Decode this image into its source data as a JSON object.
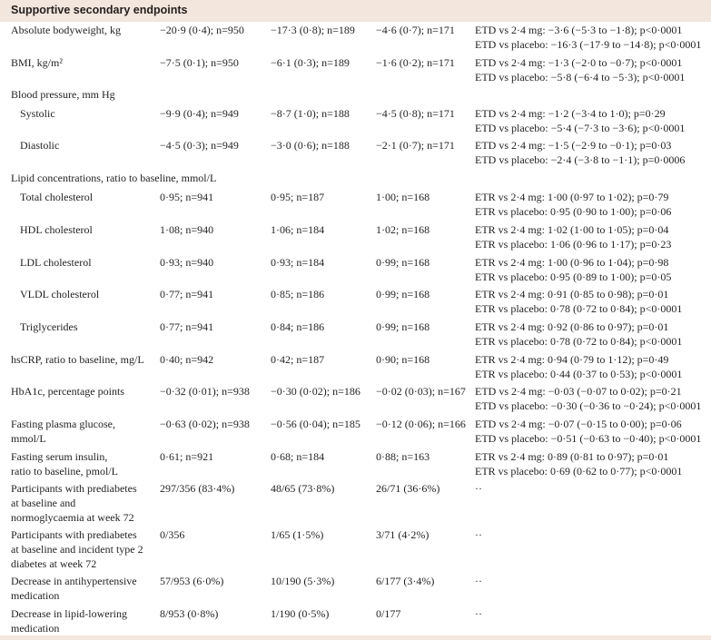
{
  "table": {
    "title": "Supportive secondary endpoints",
    "rows": [
      {
        "label": [
          "Absolute bodyweight, kg"
        ],
        "cells": [
          "−20·9 (0·4); n=950",
          "−17·3 (0·8); n=189",
          "−4·6 (0·7); n=171"
        ],
        "comparison": [
          "ETD vs 2·4 mg: −3·6 (−5·3 to −1·8); p<0·0001",
          "ETD vs placebo: −16·3 (−17·9 to −14·8); p<0·0001"
        ]
      },
      {
        "label": [
          "BMI, kg/m²"
        ],
        "cells": [
          "−7·5 (0·1); n=950",
          "−6·1 (0·3); n=189",
          "−1·6 (0·2); n=171"
        ],
        "comparison": [
          "ETD vs 2·4 mg: −1·3 (−2·0 to −0·7); p<0·0001",
          "ETD vs placebo: −5·8 (−6·4 to −5·3); p<0·0001"
        ]
      },
      {
        "label": [
          "Blood pressure, mm Hg"
        ],
        "cells": [],
        "comparison": []
      },
      {
        "label": [
          "Systolic"
        ],
        "cells": [
          "−9·9 (0·4); n=949",
          "−8·7 (1·0); n=188",
          "−4·5 (0·8); n=171"
        ],
        "comparison": [
          "ETD vs 2·4 mg: −1·2 (−3·4 to 1·0); p=0·29",
          "ETD vs placebo: −5·4 (−7·3 to −3·6); p<0·0001"
        ]
      },
      {
        "label": [
          "Diastolic"
        ],
        "cells": [
          "−4·5 (0·3); n=949",
          "−3·0 (0·6); n=188",
          "−2·1 (0·7); n=171"
        ],
        "comparison": [
          "ETD vs 2·4 mg: −1·5 (−2·9 to −0·1); p=0·03",
          "ETD vs placebo: −2·4 (−3·8 to −1·1); p=0·0006"
        ]
      },
      {
        "label": [
          "Lipid concentrations, ratio to baseline, mmol/L"
        ],
        "cells": [],
        "comparison": []
      },
      {
        "label": [
          "Total cholesterol"
        ],
        "cells": [
          "0·95; n=941",
          "0·95; n=187",
          "1·00; n=168"
        ],
        "comparison": [
          "ETR vs 2·4 mg: 1·00 (0·97 to 1·02); p=0·79",
          "ETR vs placebo: 0·95 (0·90 to 1·00); p=0·06"
        ]
      },
      {
        "label": [
          "HDL cholesterol"
        ],
        "cells": [
          "1·08; n=940",
          "1·06; n=184",
          "1·02; n=168"
        ],
        "comparison": [
          "ETR vs 2·4 mg: 1·02 (1·00 to 1·05); p=0·04",
          "ETR vs placebo: 1·06 (0·96 to 1·17); p=0·23"
        ]
      },
      {
        "label": [
          "LDL cholesterol"
        ],
        "cells": [
          "0·93; n=940",
          "0·93; n=184",
          "0·99; n=168"
        ],
        "comparison": [
          "ETR vs 2·4 mg: 1·00 (0·96 to 1·04); p=0·98",
          "ETR vs placebo: 0·95 (0·89 to 1·00); p=0·05"
        ]
      },
      {
        "label": [
          "VLDL cholesterol"
        ],
        "cells": [
          "0·77; n=941",
          "0·85; n=186",
          "0·99; n=168"
        ],
        "comparison": [
          "ETR vs 2·4 mg: 0·91 (0·85 to 0·98); p=0·01",
          "ETR vs placebo: 0·78 (0·72 to 0·84); p<0·0001"
        ]
      },
      {
        "label": [
          "Triglycerides"
        ],
        "cells": [
          "0·77; n=941",
          "0·84; n=186",
          "0·99; n=168"
        ],
        "comparison": [
          "ETR vs 2·4 mg: 0·92 (0·86 to 0·97); p=0·01",
          "ETR vs placebo: 0·78 (0·72 to 0·84); p<0·0001"
        ]
      },
      {
        "label": [
          "hsCRP, ratio to baseline, mg/L"
        ],
        "cells": [
          "0·40; n=942",
          "0·42; n=187",
          "0·90; n=168"
        ],
        "comparison": [
          "ETR vs 2·4 mg: 0·94 (0·79 to 1·12); p=0·49",
          "ETR vs placebo: 0·44 (0·37 to 0·53); p<0·0001"
        ]
      },
      {
        "label": [
          "HbA1c, percentage points"
        ],
        "cells": [
          "−0·32 (0·01); n=938",
          "−0·30 (0·02); n=186",
          "−0·02 (0·03); n=167"
        ],
        "comparison": [
          "ETD vs 2·4 mg: −0·03 (−0·07 to 0·02); p=0·21",
          "ETD vs placebo: −0·30 (−0·36 to −0·24); p<0·0001"
        ]
      },
      {
        "label": [
          "Fasting plasma glucose,",
          "mmol/L"
        ],
        "cells": [
          "−0·63 (0·02); n=938",
          "−0·56 (0·04); n=185",
          "−0·12 (0·06); n=166"
        ],
        "comparison": [
          "ETD vs 2·4 mg: −0·07 (−0·15 to 0·00); p=0·06",
          "ETD vs placebo: −0·51 (−0·63 to −0·40); p<0·0001"
        ]
      },
      {
        "label": [
          "Fasting serum insulin,",
          "ratio to baseline, pmol/L"
        ],
        "cells": [
          "0·61; n=921",
          "0·68; n=184",
          "0·88; n=163"
        ],
        "comparison": [
          "ETR vs 2·4 mg: 0·89 (0·81 to 0·97); p=0·01",
          "ETR vs placebo: 0·69 (0·62 to 0·77); p<0·0001"
        ]
      },
      {
        "label": [
          "Participants with prediabetes",
          "at baseline and",
          "normoglycaemia at week 72"
        ],
        "cells": [
          "297/356 (83·4%)",
          "48/65 (73·8%)",
          "26/71 (36·6%)"
        ],
        "comparison": [
          "··"
        ]
      },
      {
        "label": [
          "Participants with prediabetes",
          "at baseline and incident type 2",
          "diabetes at week 72"
        ],
        "cells": [
          "0/356",
          "1/65 (1·5%)",
          "3/71 (4·2%)"
        ],
        "comparison": [
          "··"
        ]
      },
      {
        "label": [
          "Decrease in antihypertensive",
          "medication"
        ],
        "cells": [
          "57/953 (6·0%)",
          "10/190 (5·3%)",
          "6/177 (3·4%)"
        ],
        "comparison": [
          "··"
        ]
      },
      {
        "label": [
          "Decrease in lipid-lowering",
          "medication"
        ],
        "cells": [
          "8/953 (0·8%)",
          "1/190 (0·5%)",
          "0/177"
        ],
        "comparison": [
          "··"
        ]
      }
    ]
  }
}
